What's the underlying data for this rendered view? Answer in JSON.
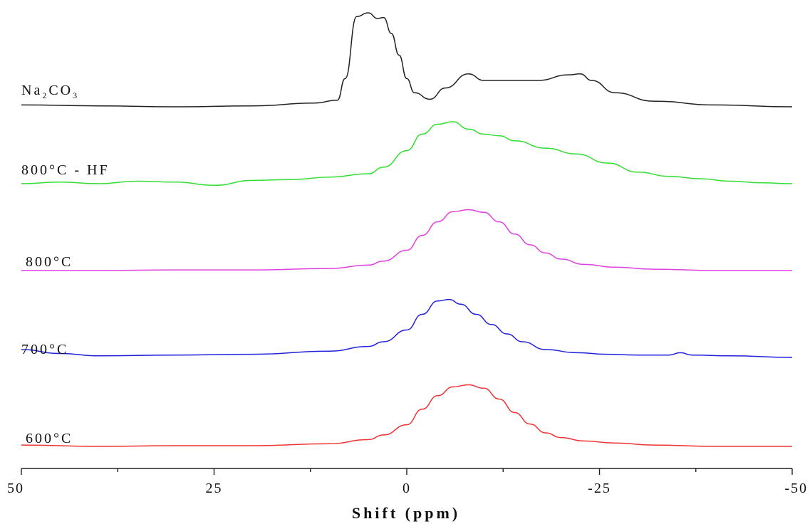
{
  "chart_data": {
    "type": "line",
    "title": "",
    "xlabel": "Shift (ppm)",
    "ylabel": "",
    "xlim": [
      50,
      -50
    ],
    "x_reversed": true,
    "xticks": [
      "50",
      "25",
      "0",
      "-25",
      "-50"
    ],
    "xtick_values": [
      50,
      25,
      0,
      -25,
      -50
    ],
    "grid": false,
    "legend": "inline labels at left",
    "series": [
      {
        "name": "Na2CO3",
        "name_main": "Na",
        "name_parts": [
          [
            "Na",
            ""
          ],
          [
            "2",
            "sub"
          ],
          [
            "CO",
            ""
          ],
          [
            "3",
            "sub"
          ]
        ],
        "color": "#222222",
        "x": [
          50,
          40,
          30,
          20,
          12,
          9,
          8,
          6.5,
          5,
          3.8,
          3,
          2,
          1,
          0,
          -1,
          -3,
          -5,
          -8,
          -10,
          -13,
          -17,
          -21,
          -22.5,
          -24,
          -27,
          -32,
          -40,
          -50
        ],
        "y": [
          0.02,
          0.01,
          0.0,
          0.01,
          0.04,
          0.07,
          0.3,
          0.96,
          1.0,
          0.94,
          0.95,
          0.78,
          0.55,
          0.3,
          0.15,
          0.08,
          0.2,
          0.35,
          0.28,
          0.28,
          0.28,
          0.34,
          0.35,
          0.28,
          0.15,
          0.06,
          0.02,
          0.0
        ]
      },
      {
        "name": "800°C - HF",
        "color": "#33dd33",
        "x": [
          50,
          45,
          40,
          35,
          30,
          25,
          20,
          15,
          10,
          5,
          3,
          0,
          -2,
          -4,
          -6,
          -8,
          -10,
          -12,
          -14,
          -18,
          -22,
          -26,
          -30,
          -34,
          -38,
          -42,
          -46,
          -50
        ],
        "y": [
          0.0,
          0.02,
          0.0,
          0.03,
          0.02,
          -0.02,
          0.04,
          0.05,
          0.08,
          0.12,
          0.2,
          0.4,
          0.6,
          0.72,
          0.75,
          0.66,
          0.6,
          0.58,
          0.52,
          0.43,
          0.36,
          0.25,
          0.14,
          0.09,
          0.06,
          0.03,
          0.01,
          0.0
        ]
      },
      {
        "name": "800°C",
        "color": "#e040e0",
        "x": [
          50,
          40,
          30,
          20,
          10,
          5,
          3,
          0,
          -2,
          -4,
          -6,
          -8,
          -10,
          -12,
          -14,
          -16,
          -18,
          -20,
          -23,
          -27,
          -32,
          -40,
          -50
        ],
        "y": [
          0.0,
          0.0,
          0.01,
          0.01,
          0.03,
          0.08,
          0.14,
          0.3,
          0.52,
          0.72,
          0.87,
          0.9,
          0.86,
          0.72,
          0.54,
          0.38,
          0.26,
          0.17,
          0.09,
          0.05,
          0.02,
          0.0,
          0.0
        ]
      },
      {
        "name": "700°C",
        "color": "#2222dd",
        "x": [
          50,
          45,
          40,
          30,
          20,
          10,
          5,
          3,
          0,
          -2,
          -4,
          -5.5,
          -7,
          -9,
          -11,
          -13,
          -15,
          -18,
          -22,
          -26,
          -30,
          -34,
          -35.5,
          -37,
          -42,
          -50
        ],
        "y": [
          0.1,
          0.05,
          0.02,
          0.03,
          0.04,
          0.08,
          0.14,
          0.2,
          0.35,
          0.55,
          0.72,
          0.74,
          0.68,
          0.55,
          0.42,
          0.3,
          0.2,
          0.1,
          0.06,
          0.04,
          0.03,
          0.03,
          0.06,
          0.03,
          0.02,
          0.0
        ]
      },
      {
        "name": "600°C",
        "color": "#ee3333",
        "x": [
          50,
          40,
          30,
          20,
          10,
          5,
          3,
          0,
          -2,
          -4,
          -6,
          -8,
          -10,
          -12,
          -14,
          -16,
          -18,
          -20,
          -23,
          -27,
          -32,
          -40,
          -50
        ],
        "y": [
          0.02,
          0.0,
          0.01,
          0.01,
          0.04,
          0.1,
          0.17,
          0.32,
          0.55,
          0.75,
          0.88,
          0.91,
          0.86,
          0.7,
          0.5,
          0.33,
          0.2,
          0.13,
          0.08,
          0.05,
          0.02,
          0.0,
          0.0
        ]
      }
    ]
  }
}
